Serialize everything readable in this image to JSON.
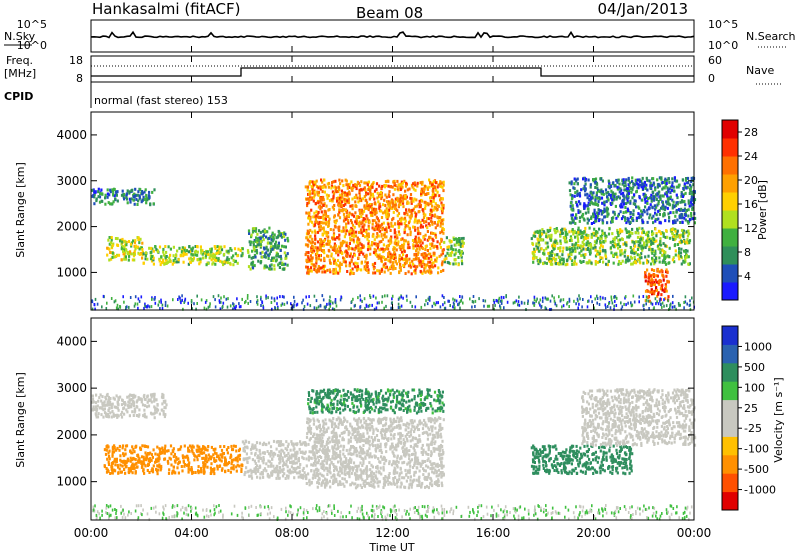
{
  "header": {
    "station": "Hankasalmi (fitACF)",
    "beam": "Beam 08",
    "date": "04/Jan/2013"
  },
  "noise_panel": {
    "left_label": "N.Sky",
    "right_label": "N.Search",
    "ticks_left": [
      "10^5",
      "10^0"
    ],
    "ticks_right": [
      "10^5",
      "10^0"
    ]
  },
  "freq_panel": {
    "left_label_1": "Freq.",
    "left_label_2": "[MHz]",
    "right_label": "Nave",
    "ticks_left": [
      "18",
      "8"
    ],
    "ticks_right": [
      "60",
      "0"
    ]
  },
  "cpid": {
    "label": "CPID",
    "text": "normal (fast stereo) 153"
  },
  "time_ticks": [
    "00:00",
    "04:00",
    "08:00",
    "12:00",
    "16:00",
    "20:00",
    "00:00"
  ],
  "xlabel": "Time UT",
  "colors": {
    "power": [
      "#1a1aff",
      "#1f4fb8",
      "#2f8f5a",
      "#40b040",
      "#b0e020",
      "#ffd000",
      "#ffa000",
      "#ff7000",
      "#ff3000",
      "#e00000"
    ],
    "velocity": [
      "#e00000",
      "#ff5000",
      "#ff9000",
      "#ffc000",
      "#c8c8c0",
      "#c8c8c0",
      "#40c040",
      "#2e8e5e",
      "#2a62b0",
      "#1a30d0"
    ]
  },
  "chart_data": [
    {
      "type": "heatmap",
      "ylabel": "Slant Range [km]",
      "ylim": [
        180,
        4500
      ],
      "yticks": [
        "1000",
        "2000",
        "3000",
        "4000"
      ],
      "xlim": [
        0,
        24
      ],
      "colorbar_label": "Power [dB]",
      "colorbar_ticks": [
        "4",
        "8",
        "12",
        "16",
        "20",
        "24",
        "28"
      ],
      "colorbar_range": [
        0,
        30
      ],
      "echo_regions": [
        {
          "t": [
            0.0,
            2.5
          ],
          "range_km": [
            2500,
            2850
          ],
          "level": 7
        },
        {
          "t": [
            0.6,
            2.0
          ],
          "range_km": [
            1300,
            1800
          ],
          "level": 15
        },
        {
          "t": [
            2.0,
            6.0
          ],
          "range_km": [
            1200,
            1600
          ],
          "level": 13
        },
        {
          "t": [
            6.2,
            7.8
          ],
          "range_km": [
            1100,
            2000
          ],
          "level": 9
        },
        {
          "t": [
            8.5,
            14.0
          ],
          "range_km": [
            1000,
            3050
          ],
          "level": 21
        },
        {
          "t": [
            14.0,
            14.8
          ],
          "range_km": [
            1200,
            1800
          ],
          "level": 11
        },
        {
          "t": [
            17.5,
            23.8
          ],
          "range_km": [
            1200,
            2000
          ],
          "level": 12
        },
        {
          "t": [
            22.0,
            23.0
          ],
          "range_km": [
            400,
            1100
          ],
          "level": 24
        },
        {
          "t": [
            19.0,
            24.0
          ],
          "range_km": [
            2100,
            3100
          ],
          "level": 6
        }
      ]
    },
    {
      "type": "heatmap",
      "ylabel": "Slant Range [km]",
      "ylim": [
        180,
        4500
      ],
      "yticks": [
        "1000",
        "2000",
        "3000",
        "4000"
      ],
      "xlim": [
        0,
        24
      ],
      "colorbar_label": "Velocity [m s⁻¹]",
      "colorbar_ticks": [
        "1000",
        "500",
        "100",
        "25",
        "-25",
        "-100",
        "-500",
        "-1000"
      ],
      "echo_regions": [
        {
          "t": [
            0.0,
            3.0
          ],
          "range_km": [
            2400,
            2900
          ],
          "value_mps": 0
        },
        {
          "t": [
            0.5,
            6.0
          ],
          "range_km": [
            1200,
            1800
          ],
          "value_mps": -250
        },
        {
          "t": [
            6.0,
            8.5
          ],
          "range_km": [
            1100,
            1900
          ],
          "value_mps": 0
        },
        {
          "t": [
            8.5,
            14.0
          ],
          "range_km": [
            2500,
            3000
          ],
          "value_mps": 200
        },
        {
          "t": [
            8.5,
            14.0
          ],
          "range_km": [
            900,
            2400
          ],
          "value_mps": 0
        },
        {
          "t": [
            17.5,
            21.5
          ],
          "range_km": [
            1200,
            1800
          ],
          "value_mps": 300
        },
        {
          "t": [
            19.5,
            24.0
          ],
          "range_km": [
            1800,
            3000
          ],
          "value_mps": 0
        }
      ]
    }
  ]
}
